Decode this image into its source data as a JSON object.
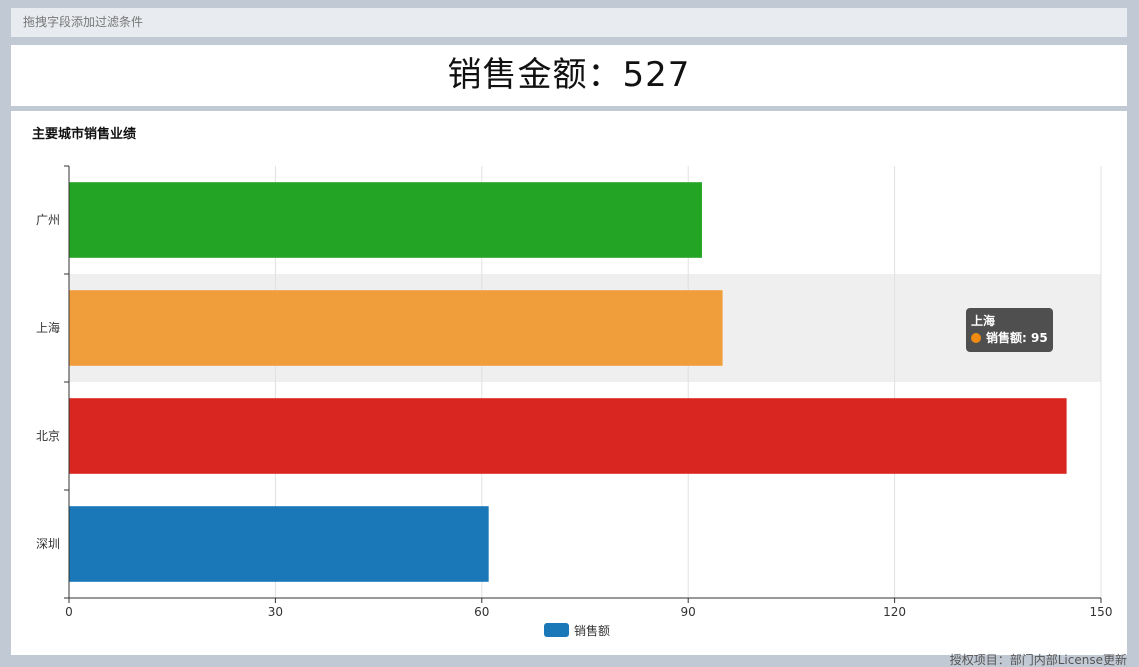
{
  "filter_bar": {
    "placeholder": "拖拽字段添加过滤条件"
  },
  "kpi": {
    "text": "销售金额：527"
  },
  "chart_panel": {
    "title": "主要城市销售业绩"
  },
  "tooltip": {
    "city": "上海",
    "label": "销售额: 95",
    "dot_color": "#f28b12"
  },
  "footer": {
    "license": "授权项目：部门内部License更新"
  },
  "chart_data": {
    "type": "bar",
    "orientation": "horizontal",
    "title": "主要城市销售业绩",
    "categories": [
      "深圳",
      "北京",
      "上海",
      "广州"
    ],
    "series": [
      {
        "name": "销售额",
        "values": [
          61,
          145,
          95,
          92
        ]
      }
    ],
    "bar_colors": [
      "#1a78b8",
      "#d92620",
      "#f09e3c",
      "#23a424"
    ],
    "legend_color": "#1a78b8",
    "xlim": [
      0,
      150
    ],
    "xticks": [
      0,
      30,
      60,
      90,
      120,
      150
    ],
    "grid": true,
    "legend_position": "bottom-center",
    "highlighted_category": "上海"
  }
}
